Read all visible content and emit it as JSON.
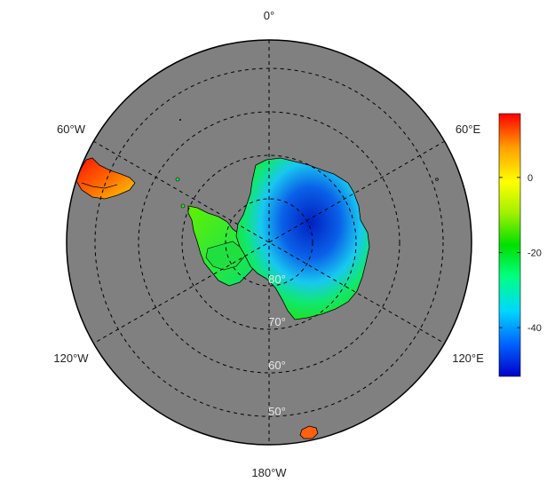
{
  "map": {
    "projection": "south-polar-stereographic",
    "ocean_color": "#808080",
    "meridian_labels": [
      {
        "lon": "0°"
      },
      {
        "lon": "60°E"
      },
      {
        "lon": "120°E"
      },
      {
        "lon": "180°W"
      },
      {
        "lon": "120°W"
      },
      {
        "lon": "60°W"
      }
    ],
    "latitude_labels": [
      "80°",
      "70°",
      "60°",
      "50°"
    ]
  },
  "colorbar": {
    "min": -53,
    "max": 17,
    "ticks": [
      "0",
      "-20",
      "-40"
    ],
    "tick_values": [
      0,
      -20,
      -40
    ],
    "colors": [
      "#0000c8",
      "#0060ff",
      "#00d8ff",
      "#00ff80",
      "#00e000",
      "#a0f000",
      "#ffff00",
      "#ffa000",
      "#ff0000"
    ]
  }
}
